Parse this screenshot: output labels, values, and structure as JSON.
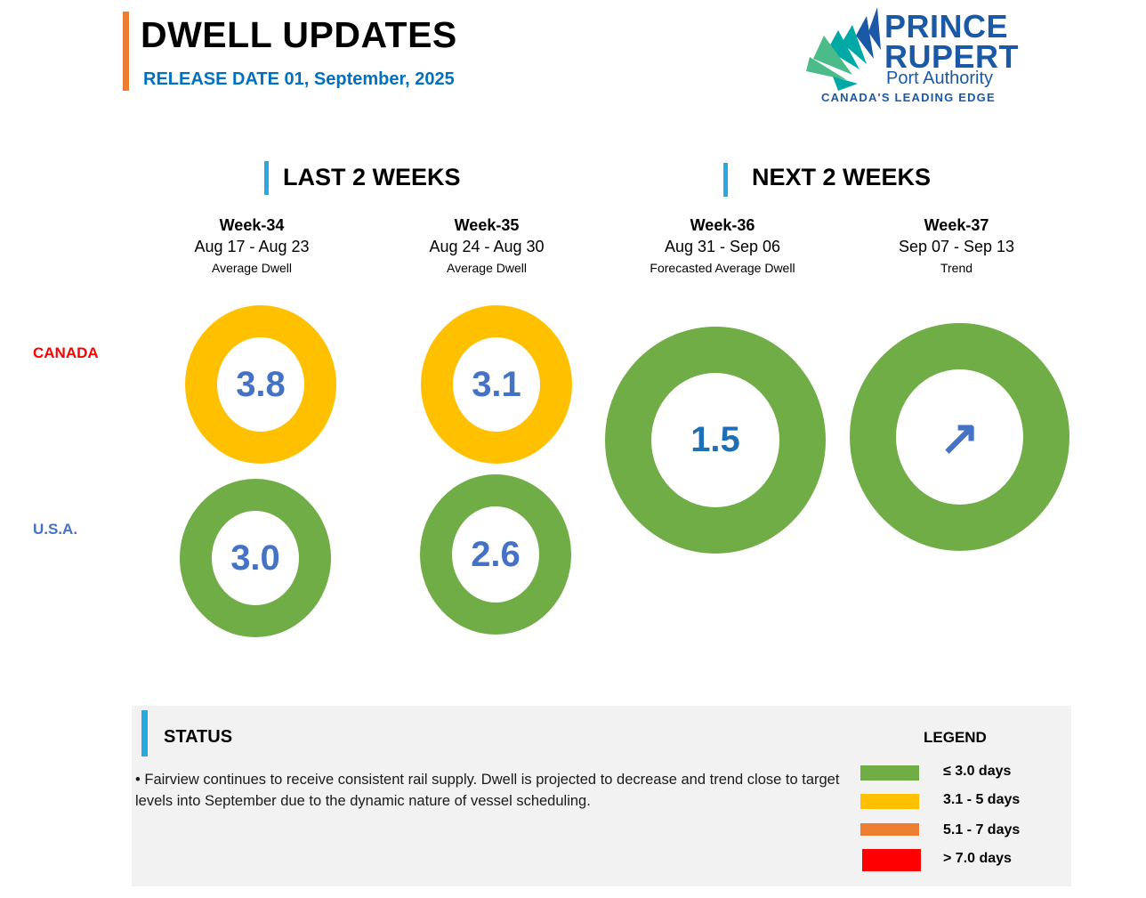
{
  "header": {
    "title": "DWELL UPDATES",
    "release": "RELEASE DATE 01, September, 2025",
    "accent_color": "#ED7D31"
  },
  "logo": {
    "line1": "PRINCE",
    "line2": "RUPERT",
    "line3": "Port Authority",
    "tagline": "CANADA'S LEADING EDGE",
    "colors": [
      "#1B59A6",
      "#00A9A5",
      "#4CBB8A"
    ]
  },
  "sections": {
    "last": "LAST 2 WEEKS",
    "next": "NEXT 2 WEEKS"
  },
  "weeks": [
    {
      "week": "Week-34",
      "dates": "Aug 17 - Aug 23",
      "sub": "Average Dwell"
    },
    {
      "week": "Week-35",
      "dates": "Aug 24 - Aug 30",
      "sub": "Average Dwell"
    },
    {
      "week": "Week-36",
      "dates": "Aug 31 - Sep 06",
      "sub": "Forecasted Average Dwell"
    },
    {
      "week": "Week-37",
      "dates": "Sep 07 - Sep 13",
      "sub": "Trend"
    }
  ],
  "countries": {
    "canada": "CANADA",
    "usa": "U.S.A."
  },
  "values": {
    "canada_w34": "3.8",
    "canada_w35": "3.1",
    "usa_w34": "3.0",
    "usa_w35": "2.6",
    "forecast_w36": "1.5",
    "trend_w37": "↗"
  },
  "status": {
    "title": "STATUS",
    "text": "•  Fairview continues to receive consistent rail supply. Dwell is projected to decrease and trend close to target levels into September due to the dynamic nature of vessel scheduling."
  },
  "legend": {
    "title": "LEGEND",
    "items": [
      {
        "label": "≤ 3.0 days",
        "color": "#70AD47"
      },
      {
        "label": "3.1 - 5 days",
        "color": "#FFC000"
      },
      {
        "label": "5.1 - 7 days",
        "color": "#ED7D31"
      },
      {
        "label": "> 7.0 days",
        "color": "#FF0000"
      }
    ]
  }
}
